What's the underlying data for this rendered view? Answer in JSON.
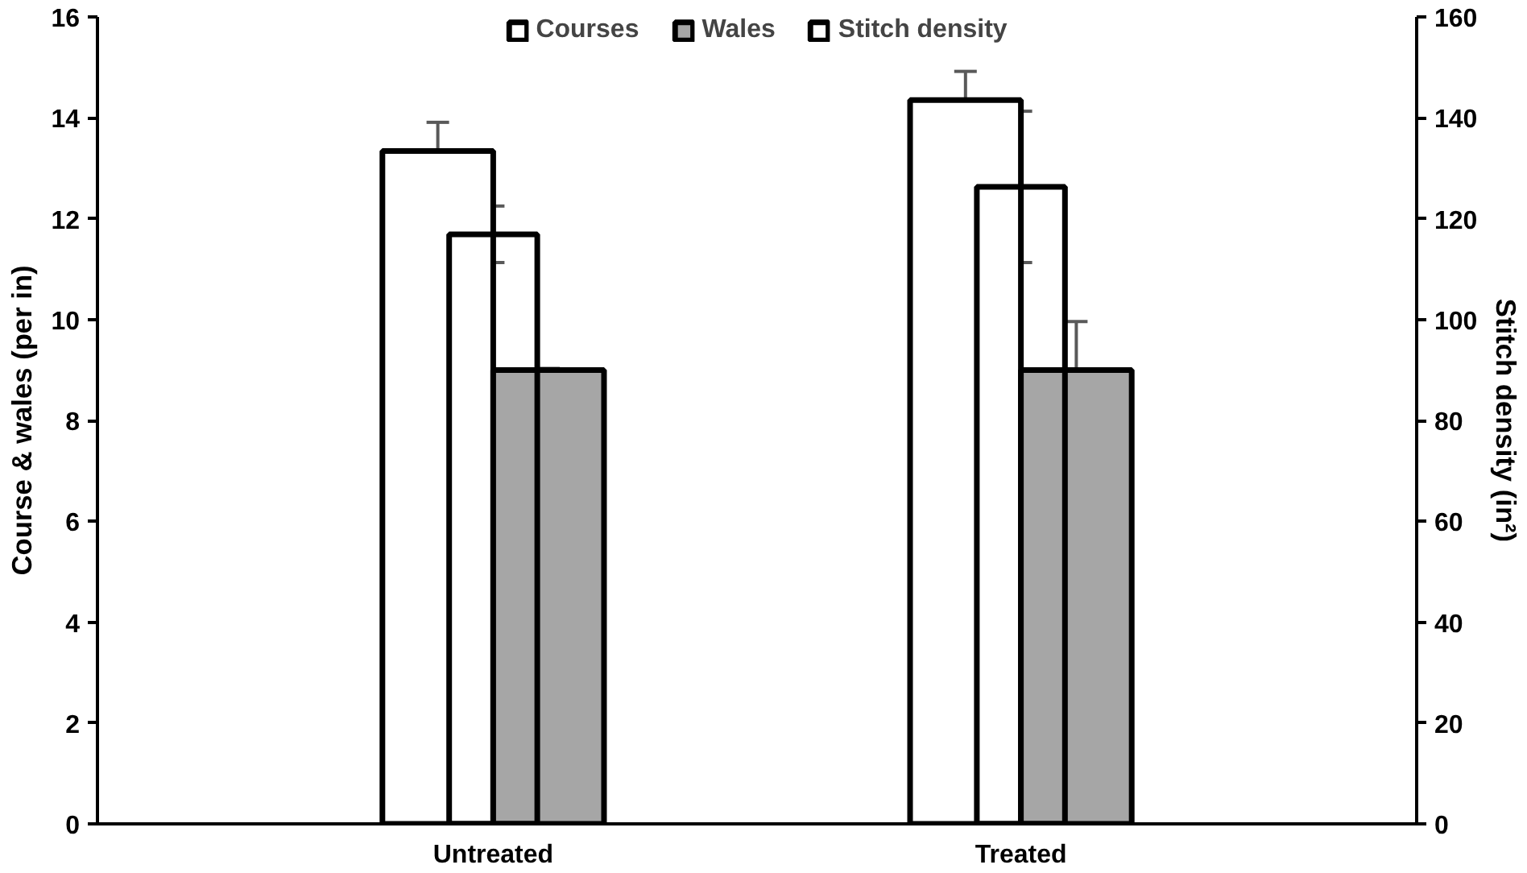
{
  "chart_data": {
    "type": "bar",
    "categories": [
      "Untreated",
      "Treated"
    ],
    "ylabel": "Course & wales (per in)",
    "y2label": "Stitch density (in²)",
    "ylim": [
      0,
      16
    ],
    "yticks": [
      0,
      2,
      4,
      6,
      8,
      10,
      12,
      14,
      16
    ],
    "y2lim": [
      0,
      160
    ],
    "y2ticks": [
      0,
      20,
      40,
      60,
      80,
      100,
      120,
      140,
      160
    ],
    "grid": false,
    "legend": "top",
    "series": [
      {
        "name": "Courses",
        "color": "#ffffff",
        "values": [
          13.34,
          14.35
        ],
        "errors": [
          0.57,
          0.57
        ]
      },
      {
        "name": "Wales",
        "color": "#a6a6a6",
        "values": [
          9.0,
          9.0
        ],
        "errors": [
          0.03,
          0.96
        ]
      },
      {
        "name": "Stitch density",
        "axis": "y2",
        "values": [
          116.9,
          126.3
        ],
        "errors": [
          5.6,
          15
        ]
      }
    ]
  }
}
